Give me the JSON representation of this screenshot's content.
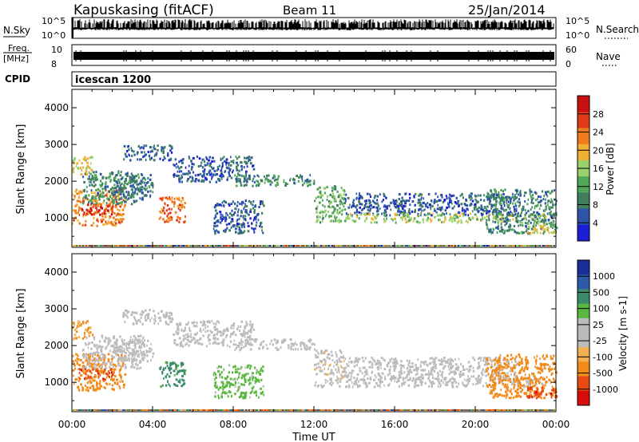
{
  "header": {
    "station": "Kapuskasing (fitACF)",
    "beam": "Beam 11",
    "date": "25/Jan/2014"
  },
  "strips": {
    "nsky": {
      "label": "N.Sky",
      "tick_top": "10^5",
      "tick_bottom": "10^0"
    },
    "nsearch": {
      "label": "N.Search",
      "tick_top": "10^5",
      "tick_bottom": "10^0"
    },
    "freq": {
      "label_top": "Freq.",
      "label_bottom": "[MHz]",
      "tick_top": "10",
      "tick_bottom": "8"
    },
    "nave": {
      "label": "Nave",
      "tick_top": "60",
      "tick_bottom": "0"
    },
    "cpid": {
      "label": "CPID",
      "value": "icescan 1200"
    }
  },
  "colors": {
    "power": [
      "#1d1dd6",
      "#2c54a8",
      "#3f7f5f",
      "#52a85a",
      "#9bd16a",
      "#f0b030",
      "#f07a1e",
      "#e03a16",
      "#c81010"
    ],
    "velocity": [
      "#1a2d9a",
      "#2a5aa8",
      "#3b8a6a",
      "#59b83e",
      "#bcbcbc",
      "#bcbcbc",
      "#f2b050",
      "#f28a1a",
      "#e84a12",
      "#d80e0e"
    ]
  },
  "chart_data": [
    {
      "type": "heatmap",
      "name": "power",
      "ylabel": "Slant Range [km]",
      "xlabel": "",
      "ylim": [
        200,
        4500
      ],
      "yticks": [
        1000,
        2000,
        3000,
        4000
      ],
      "xlim_hours": [
        0,
        24
      ],
      "colorbar": {
        "label": "Power [dB]",
        "ticks": [
          4,
          8,
          12,
          16,
          20,
          24,
          28
        ],
        "range": [
          0,
          32
        ]
      },
      "bands": [
        {
          "t0": 0.0,
          "t1": 2.6,
          "r0": 800,
          "r1": 1800,
          "value": 22
        },
        {
          "t0": 0.0,
          "t1": 1.0,
          "r0": 2200,
          "r1": 2700,
          "value": 18
        },
        {
          "t0": 0.3,
          "t1": 2.0,
          "r0": 1100,
          "r1": 1400,
          "value": 28
        },
        {
          "t0": 0.5,
          "t1": 3.5,
          "r0": 1400,
          "r1": 2300,
          "value": 9
        },
        {
          "t0": 2.0,
          "t1": 4.0,
          "r0": 1600,
          "r1": 2200,
          "value": 8
        },
        {
          "t0": 2.5,
          "t1": 5.0,
          "r0": 2600,
          "r1": 3000,
          "value": 6
        },
        {
          "t0": 4.3,
          "t1": 5.6,
          "r0": 900,
          "r1": 1600,
          "value": 24
        },
        {
          "t0": 5.0,
          "t1": 9.0,
          "r0": 2000,
          "r1": 2700,
          "value": 6
        },
        {
          "t0": 7.0,
          "t1": 9.5,
          "r0": 600,
          "r1": 1500,
          "value": 6
        },
        {
          "t0": 8.0,
          "t1": 12.0,
          "r0": 1900,
          "r1": 2200,
          "value": 10
        },
        {
          "t0": 12.0,
          "t1": 13.5,
          "r0": 900,
          "r1": 1900,
          "value": 13
        },
        {
          "t0": 13.5,
          "t1": 22.0,
          "r0": 1100,
          "r1": 1700,
          "value": 6
        },
        {
          "t0": 13.5,
          "t1": 23.5,
          "r0": 900,
          "r1": 1150,
          "value": 16
        },
        {
          "t0": 20.5,
          "t1": 24.0,
          "r0": 600,
          "r1": 1800,
          "value": 9
        },
        {
          "t0": 22.5,
          "t1": 24.0,
          "r0": 600,
          "r1": 900,
          "value": 17
        }
      ]
    },
    {
      "type": "heatmap",
      "name": "velocity",
      "ylabel": "Slant Range [km]",
      "xlabel": "Time UT",
      "ylim": [
        200,
        4500
      ],
      "yticks": [
        1000,
        2000,
        3000,
        4000
      ],
      "xticks": [
        "00:00",
        "04:00",
        "08:00",
        "12:00",
        "16:00",
        "20:00",
        "00:00"
      ],
      "xlim_hours": [
        0,
        24
      ],
      "colorbar": {
        "label": "Velocity [m s-1]",
        "ticks": [
          1000,
          500,
          100,
          25,
          -25,
          -100,
          -500,
          -1000
        ]
      },
      "bands": [
        {
          "t0": 0.0,
          "t1": 2.6,
          "r0": 800,
          "r1": 1800,
          "value": -300
        },
        {
          "t0": 0.0,
          "t1": 1.0,
          "r0": 2200,
          "r1": 2700,
          "value": -120
        },
        {
          "t0": 0.3,
          "t1": 2.0,
          "r0": 1100,
          "r1": 1400,
          "value": -800
        },
        {
          "t0": 0.5,
          "t1": 3.5,
          "r0": 1400,
          "r1": 2300,
          "value": 0
        },
        {
          "t0": 2.0,
          "t1": 4.0,
          "r0": 1600,
          "r1": 2200,
          "value": 0
        },
        {
          "t0": 2.5,
          "t1": 5.0,
          "r0": 2600,
          "r1": 3000,
          "value": 0
        },
        {
          "t0": 4.3,
          "t1": 5.6,
          "r0": 900,
          "r1": 1600,
          "value": 150
        },
        {
          "t0": 5.0,
          "t1": 9.0,
          "r0": 2000,
          "r1": 2700,
          "value": 0
        },
        {
          "t0": 7.0,
          "t1": 9.5,
          "r0": 600,
          "r1": 1500,
          "value": 40
        },
        {
          "t0": 8.0,
          "t1": 12.0,
          "r0": 1900,
          "r1": 2200,
          "value": 0
        },
        {
          "t0": 12.0,
          "t1": 13.5,
          "r0": 900,
          "r1": 1900,
          "value": -10
        },
        {
          "t0": 13.5,
          "t1": 22.0,
          "r0": 1100,
          "r1": 1700,
          "value": 0
        },
        {
          "t0": 13.5,
          "t1": 23.5,
          "r0": 900,
          "r1": 1150,
          "value": 0
        },
        {
          "t0": 20.5,
          "t1": 24.0,
          "r0": 600,
          "r1": 1800,
          "value": -300
        },
        {
          "t0": 22.5,
          "t1": 24.0,
          "r0": 600,
          "r1": 900,
          "value": -800
        }
      ]
    }
  ]
}
